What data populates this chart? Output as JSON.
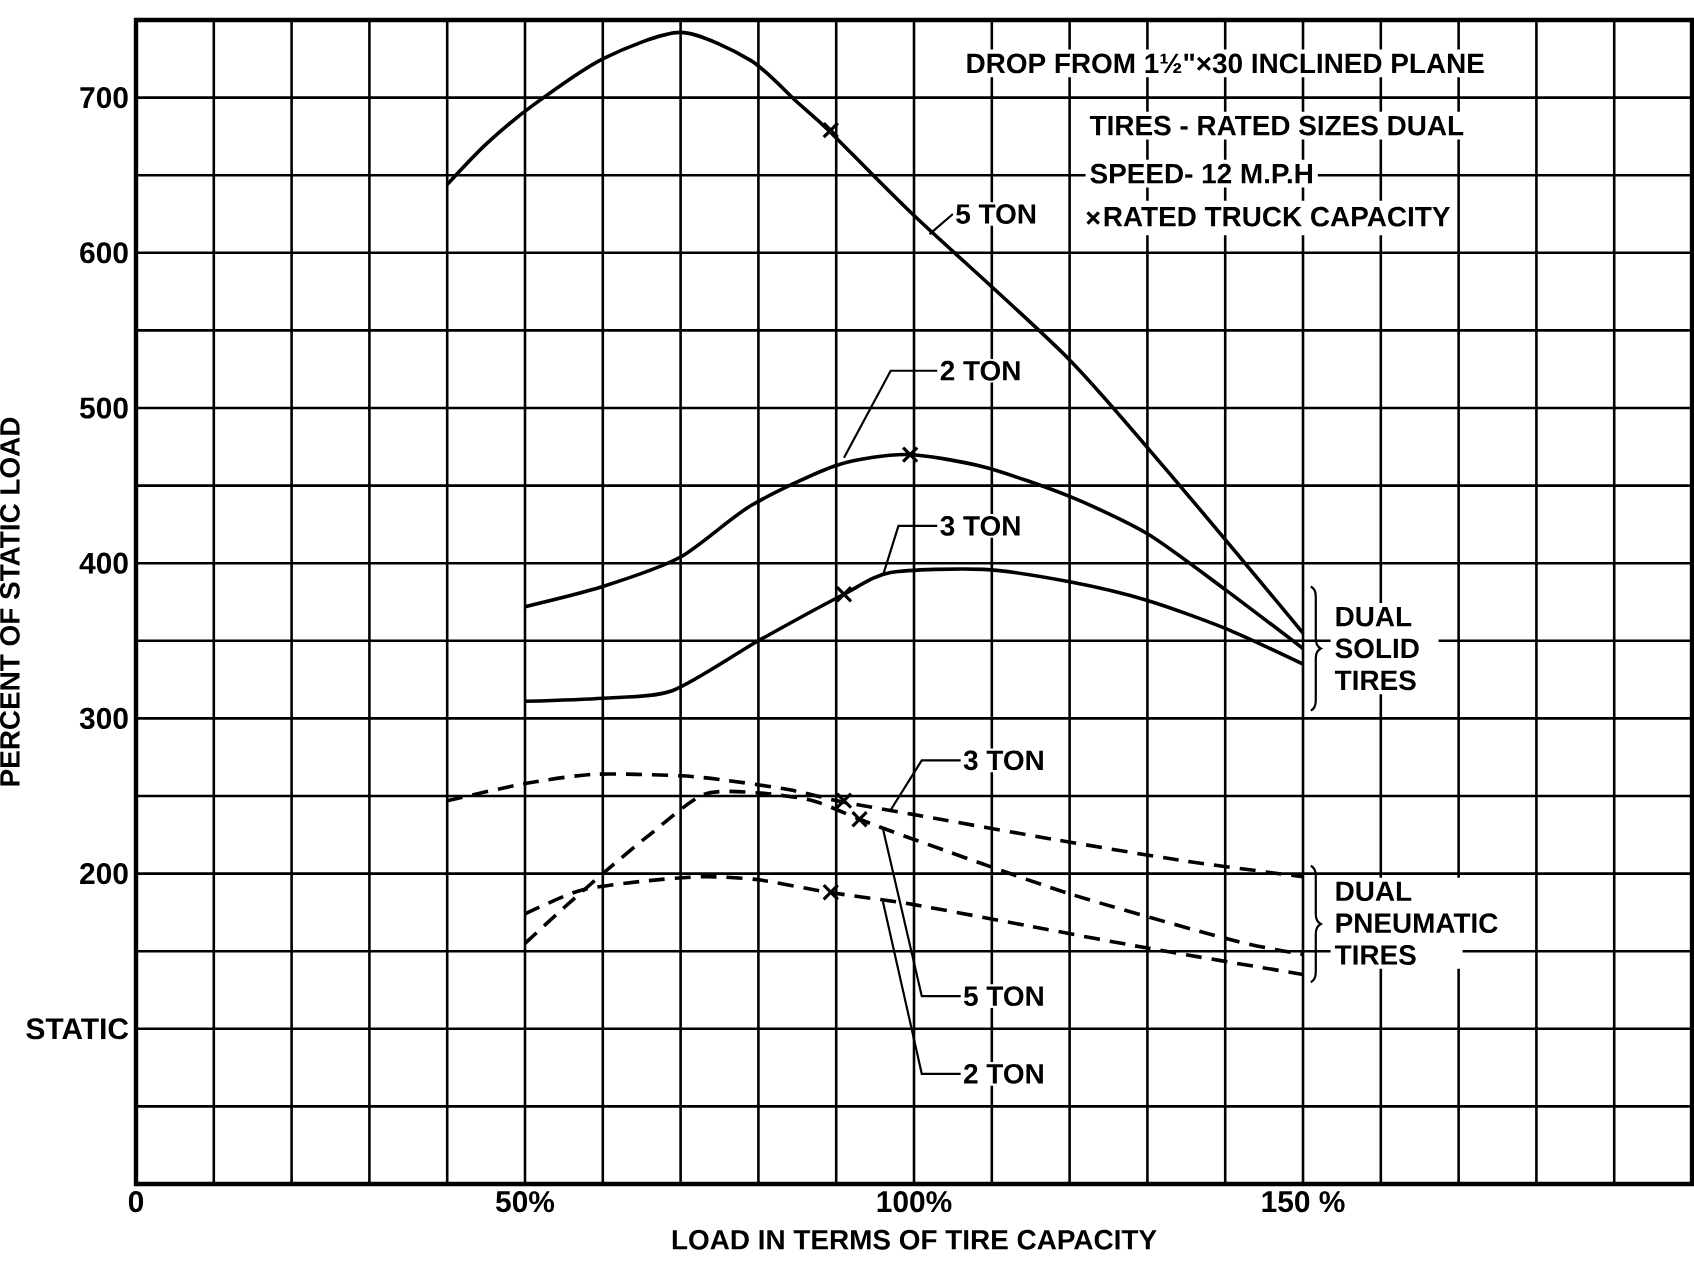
{
  "chart_data": {
    "type": "line",
    "xlabel": "LOAD IN TERMS OF TIRE CAPACITY",
    "ylabel": "PERCENT OF STATIC LOAD",
    "xlim": [
      0,
      200
    ],
    "ylim": [
      0,
      750
    ],
    "xticks": [
      {
        "value": 0,
        "label": "0"
      },
      {
        "value": 10,
        "label": null
      },
      {
        "value": 20,
        "label": null
      },
      {
        "value": 30,
        "label": null
      },
      {
        "value": 40,
        "label": null
      },
      {
        "value": 50,
        "label": "50%"
      },
      {
        "value": 60,
        "label": null
      },
      {
        "value": 70,
        "label": null
      },
      {
        "value": 80,
        "label": null
      },
      {
        "value": 90,
        "label": null
      },
      {
        "value": 100,
        "label": "100%"
      },
      {
        "value": 110,
        "label": null
      },
      {
        "value": 120,
        "label": null
      },
      {
        "value": 130,
        "label": null
      },
      {
        "value": 140,
        "label": null
      },
      {
        "value": 150,
        "label": "150 %"
      },
      {
        "value": 160,
        "label": null
      },
      {
        "value": 170,
        "label": null
      },
      {
        "value": 180,
        "label": null
      },
      {
        "value": 190,
        "label": null
      },
      {
        "value": 200,
        "label": null
      }
    ],
    "yticks": [
      {
        "value": 0,
        "label": null
      },
      {
        "value": 50,
        "label": null
      },
      {
        "value": 100,
        "label": "STATIC"
      },
      {
        "value": 150,
        "label": null
      },
      200,
      {
        "value": 250,
        "label": null
      },
      300,
      {
        "value": 350,
        "label": null
      },
      400,
      {
        "value": 450,
        "label": null
      },
      500,
      {
        "value": 550,
        "label": null
      },
      600,
      {
        "value": 650,
        "label": null
      },
      700,
      {
        "value": 750,
        "label": null
      }
    ],
    "grid": true,
    "legend": "top right",
    "series": [
      {
        "name": "5 TON",
        "color": "#000000",
        "line_style": "solid",
        "x": [
          40,
          45,
          51,
          60,
          70,
          79,
          85,
          89,
          100,
          120,
          135,
          150
        ],
        "values": [
          644,
          670,
          695,
          725,
          742,
          724,
          697,
          679,
          624,
          531,
          445,
          355
        ]
      },
      {
        "name": "2 TON",
        "color": "#000000",
        "line_style": "solid",
        "x": [
          50,
          60,
          70,
          79,
          90,
          99,
          109,
          120,
          130,
          140,
          150
        ],
        "values": [
          372,
          385,
          404,
          437,
          463,
          470,
          462,
          443,
          419,
          383,
          345
        ]
      },
      {
        "name": "3 TON",
        "color": "#000000",
        "line_style": "solid",
        "x": [
          50,
          60,
          69,
          80,
          91,
          97,
          109,
          120,
          130,
          140,
          150
        ],
        "values": [
          311,
          313,
          318,
          350,
          380,
          394,
          396,
          388,
          376,
          358,
          335
        ]
      },
      {
        "name": "3 TON",
        "color": "#000000",
        "line_style": "dashed",
        "x": [
          40,
          50,
          59,
          70,
          76,
          84,
          91,
          100,
          118,
          135,
          150
        ],
        "values": [
          247,
          258,
          264,
          263,
          260,
          254,
          246,
          238,
          222,
          208,
          198
        ]
      },
      {
        "name": "5 TON",
        "color": "#000000",
        "line_style": "dashed",
        "x": [
          50,
          55,
          60,
          66,
          73,
          80,
          87,
          93,
          100,
          120,
          141,
          150
        ],
        "values": [
          155,
          178,
          200,
          225,
          251,
          252,
          247,
          235,
          222,
          187,
          157,
          148
        ]
      },
      {
        "name": "2 TON",
        "color": "#000000",
        "line_style": "dashed",
        "x": [
          50,
          57,
          65,
          73,
          80,
          89,
          100,
          115,
          130,
          150
        ],
        "values": [
          174,
          189,
          195,
          198,
          196,
          188,
          180,
          166,
          152,
          135
        ]
      },
      {
        "name": "RATED TRUCK CAPACITY",
        "type": "scatter",
        "marker": "cross",
        "color": "#000000",
        "x": [
          89.3,
          99.5,
          91,
          91,
          93,
          89.3
        ],
        "values": [
          679,
          470,
          380,
          247,
          235,
          188
        ]
      }
    ],
    "annotations": [
      "DROP FROM 1½\"×30 INCLINED PLANE",
      "TIRES - RATED SIZES DUAL",
      "SPEED- 12 M.P.H",
      "DUAL SOLID TIRES",
      "DUAL PNEUMATIC TIRES"
    ]
  }
}
